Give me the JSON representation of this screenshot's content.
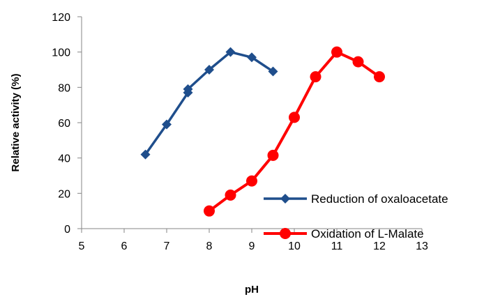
{
  "chart_data": {
    "type": "line",
    "title": "",
    "xlabel": "pH",
    "ylabel": "Relative activity (%)",
    "xlim": [
      5,
      13
    ],
    "ylim": [
      0,
      120
    ],
    "xticks": [
      5,
      6,
      7,
      8,
      9,
      10,
      11,
      12,
      13
    ],
    "yticks": [
      0,
      20,
      40,
      60,
      80,
      100,
      120
    ],
    "grid": false,
    "legend_position": "lower-right",
    "series": [
      {
        "name": "Reduction of oxaloacetate",
        "color": "#1f4e8c",
        "marker": "diamond",
        "x": [
          6.5,
          7,
          7.5,
          7.5,
          8,
          8.5,
          9,
          9.5
        ],
        "y": [
          42,
          59,
          77,
          79,
          90,
          100,
          97,
          89
        ]
      },
      {
        "name": "Oxidation of L-Malate",
        "color": "#ff0000",
        "marker": "circle",
        "x": [
          8,
          8.5,
          9,
          9.5,
          10,
          10.5,
          11,
          11.5,
          12
        ],
        "y": [
          10,
          19,
          27,
          41.5,
          63,
          86,
          100,
          94.5,
          86
        ]
      }
    ]
  }
}
